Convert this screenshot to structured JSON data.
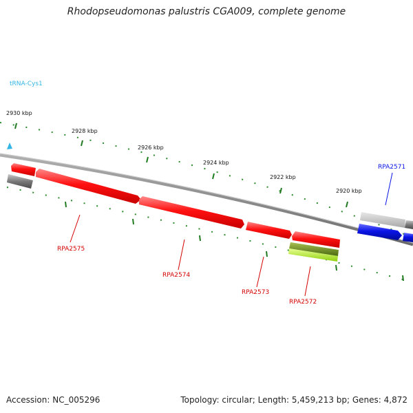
{
  "title": "Rhodopseudomonas palustris CGA009, complete genome",
  "footer": {
    "accession": "Accession: NC_005296",
    "stats": "Topology: circular; Length: 5,459,213 bp; Genes: 4,872"
  },
  "colors": {
    "background": "#ffffff",
    "backbone": "#8a8a8a",
    "tick": "#1f7a1f",
    "forward_gene": "#ff1a1a",
    "reverse_gene": "#0a14e6",
    "trna": "#33b5e5",
    "other_feature": "#8c8c8c",
    "highlight_feature": "#9ccc22"
  },
  "chart_data": {
    "type": "genome-map",
    "scale_labels": [
      "2930 kbp",
      "2928 kbp",
      "2926 kbp",
      "2924 kbp",
      "2922 kbp",
      "2920 kbp"
    ],
    "feature_labels": [
      {
        "text": "tRNA-Cys1",
        "kind": "tRNA"
      },
      {
        "text": "RPA2571",
        "kind": "CDS-reverse"
      },
      {
        "text": "RPA2575",
        "kind": "CDS"
      },
      {
        "text": "RPA2574",
        "kind": "CDS"
      },
      {
        "text": "RPA2573",
        "kind": "CDS"
      },
      {
        "text": "RPA2572",
        "kind": "CDS"
      }
    ]
  }
}
